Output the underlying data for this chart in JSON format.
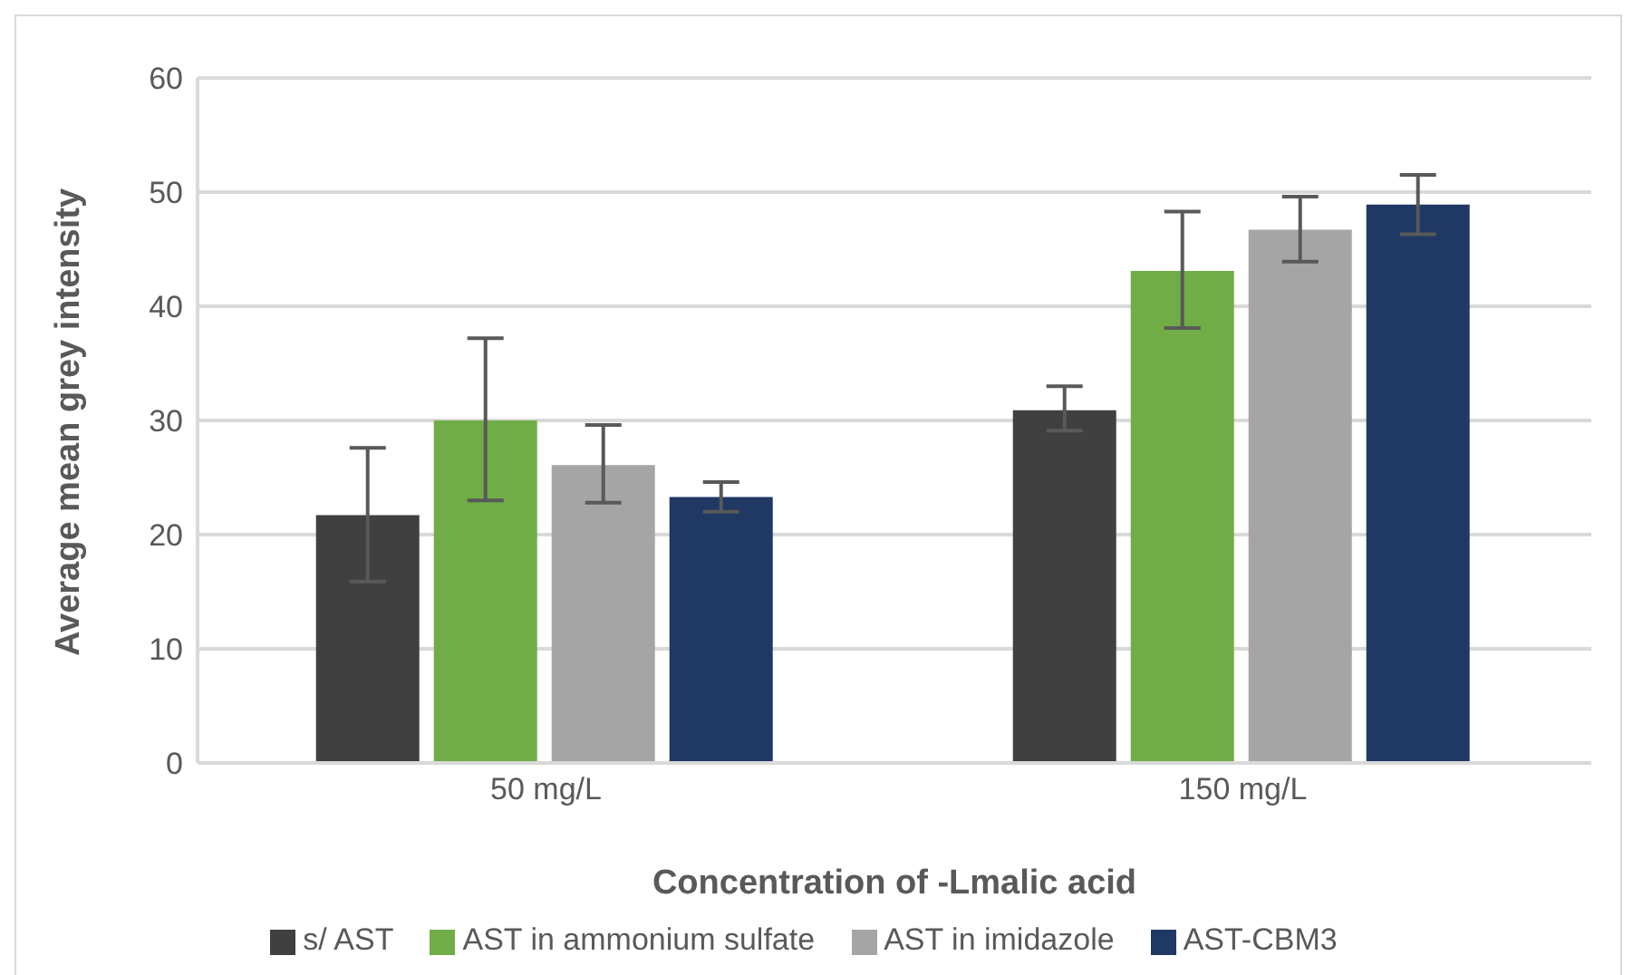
{
  "chart_data": {
    "type": "bar",
    "xlabel": "Concentration of -Lmalic acid",
    "ylabel": "Average mean grey intensity",
    "categories": [
      "50 mg/L",
      "150 mg/L"
    ],
    "series": [
      {
        "name": "s/ AST",
        "color": "#404040",
        "values": [
          21.7,
          30.9
        ],
        "errors": [
          [
            15.9,
            27.6
          ],
          [
            29.1,
            33.0
          ]
        ]
      },
      {
        "name": "AST in ammonium sulfate",
        "color": "#70ad47",
        "values": [
          30.0,
          43.1
        ],
        "errors": [
          [
            23.0,
            37.2
          ],
          [
            38.1,
            48.3
          ]
        ]
      },
      {
        "name": "AST in imidazole",
        "color": "#a5a5a5",
        "values": [
          26.1,
          46.7
        ],
        "errors": [
          [
            22.8,
            29.6
          ],
          [
            43.9,
            49.6
          ]
        ]
      },
      {
        "name": "AST-CBM3",
        "color": "#203864",
        "values": [
          23.3,
          48.9
        ],
        "errors": [
          [
            22.0,
            24.6
          ],
          [
            46.3,
            51.5
          ]
        ]
      }
    ],
    "ylim": [
      0,
      60
    ],
    "yticks": [
      0,
      10,
      20,
      30,
      40,
      50,
      60
    ],
    "grid": "y",
    "legend": "bottom"
  }
}
